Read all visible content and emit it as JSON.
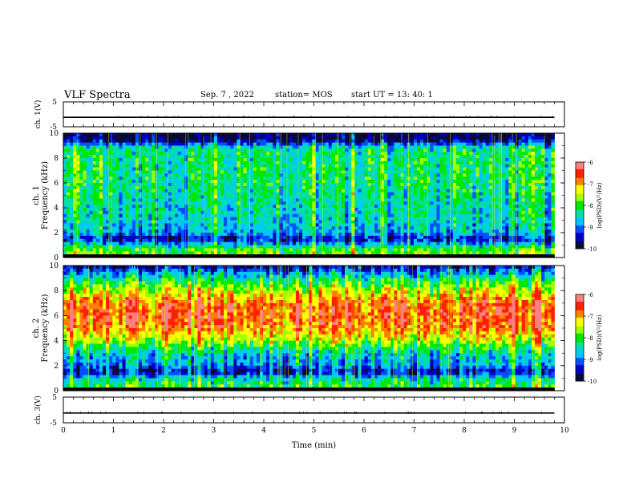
{
  "header": {
    "title": "VLF Spectra",
    "date": "Sep. 7 , 2022",
    "station": "station= MOS",
    "start_time": "start UT = 13: 40: 1"
  },
  "colors": {
    "spectrogram_scale": [
      "#0a0a3a",
      "#0000c8",
      "#0050ff",
      "#00c8ff",
      "#00e0a0",
      "#00e800",
      "#a0ff00",
      "#ffff00",
      "#ff8000",
      "#ff2000",
      "#ff8080",
      "#ffffff"
    ]
  },
  "chart_data": [
    {
      "type": "line",
      "panel": "ch1-voltage",
      "ylabel": "ch. 1(V)",
      "ylim": [
        -5,
        5
      ],
      "y_ticks": [
        "5",
        "-5"
      ],
      "x": [
        0,
        10
      ],
      "values": [
        -1.2,
        -1.2
      ],
      "xlim": [
        0,
        10
      ]
    },
    {
      "type": "heatmap",
      "panel": "ch1-spectrogram",
      "ylabel": "ch. 1\nFrequency (kHz)",
      "ylim": [
        0,
        10
      ],
      "xlim": [
        0,
        10
      ],
      "y_ticks": [
        "0",
        "2",
        "4",
        "6",
        "8",
        "10"
      ],
      "colorbar": {
        "label": "log(PSD)(V²/Hz)",
        "range": [
          -10,
          -6
        ],
        "ticks": [
          "-6",
          "-7",
          "-8",
          "-9",
          "-10"
        ]
      },
      "description_profile": {
        "freq_kHz": [
          0.2,
          0.5,
          1,
          1.5,
          2,
          3,
          4,
          5,
          6,
          7,
          8,
          8.8,
          9.5,
          10
        ],
        "mean_log_psd": [
          -8.0,
          -7.8,
          -8.6,
          -9.6,
          -8.8,
          -8.6,
          -8.5,
          -8.4,
          -8.3,
          -8.3,
          -8.3,
          -8.4,
          -9.9,
          -9.9
        ]
      }
    },
    {
      "type": "heatmap",
      "panel": "ch2-spectrogram",
      "ylabel": "ch. 2\nFrequency (kHz)",
      "ylim": [
        0,
        10
      ],
      "xlim": [
        0,
        10
      ],
      "y_ticks": [
        "0",
        "2",
        "4",
        "6",
        "8",
        "10"
      ],
      "colorbar": {
        "label": "log(PSD)(V²/Hz)",
        "range": [
          -10,
          -6
        ],
        "ticks": [
          "-6",
          "-7",
          "-8",
          "-9",
          "-10"
        ]
      },
      "description_profile": {
        "freq_kHz": [
          0.2,
          0.5,
          1,
          1.5,
          2,
          3,
          4,
          5,
          6,
          7,
          8,
          8.8,
          9.5,
          10
        ],
        "mean_log_psd": [
          -8.0,
          -8.2,
          -8.5,
          -9.6,
          -8.9,
          -8.6,
          -7.6,
          -6.9,
          -6.7,
          -6.8,
          -7.5,
          -8.2,
          -9.0,
          -9.7
        ]
      }
    },
    {
      "type": "line",
      "panel": "ch3-voltage",
      "ylabel": "ch. 3(V)",
      "ylim": [
        -5,
        5
      ],
      "y_ticks": [
        "5",
        "-5"
      ],
      "x": [
        0,
        10
      ],
      "values": [
        -1.2,
        -1.2
      ],
      "xlim": [
        0,
        10
      ]
    }
  ],
  "x_axis": {
    "label": "Time (min)",
    "ticks": [
      "0",
      "1",
      "2",
      "3",
      "4",
      "5",
      "6",
      "7",
      "8",
      "9",
      "10"
    ],
    "data_end_min": 9.8
  }
}
